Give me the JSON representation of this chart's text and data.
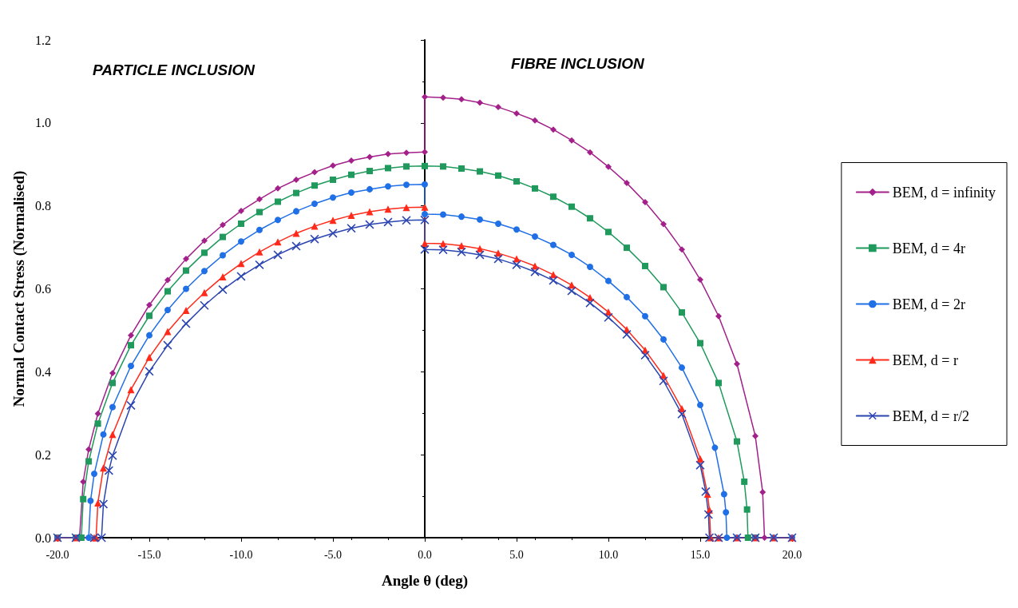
{
  "chart_data": {
    "type": "line",
    "xlabel": "Angle θ (deg)",
    "ylabel": "Normal Contact Stress (Normalised)",
    "annotations": [
      "PARTICLE INCLUSION",
      "FIBRE INCLUSION"
    ],
    "xlim": [
      -20,
      20
    ],
    "xticks": [
      {
        "value": -20,
        "label": "-20.0"
      },
      {
        "value": -15,
        "label": "-15.0"
      },
      {
        "value": -10,
        "label": "-10.0"
      },
      {
        "value": -5,
        "label": "-5.0"
      },
      {
        "value": 0,
        "label": "0.0"
      },
      {
        "value": 5,
        "label": "5.0"
      },
      {
        "value": 10,
        "label": "10.0"
      },
      {
        "value": 15,
        "label": "15.0"
      },
      {
        "value": 20,
        "label": "20.0"
      }
    ],
    "ylim": [
      0,
      1.2
    ],
    "yticks": [
      {
        "value": 0,
        "label": "0.0"
      },
      {
        "value": 0.2,
        "label": "0.2"
      },
      {
        "value": 0.4,
        "label": "0.4"
      },
      {
        "value": 0.6,
        "label": "0.6"
      },
      {
        "value": 0.8,
        "label": "0.8"
      },
      {
        "value": 1,
        "label": "1.0"
      },
      {
        "value": 1.2,
        "label": "1.2"
      }
    ],
    "legend": "right",
    "line_style": "solid",
    "series": [
      {
        "name": "BEM, d = infinity",
        "color": "#a3208a",
        "marker": "diamond",
        "x": [
          -20,
          -19,
          -18.8,
          -18.6,
          -18.3,
          -17.8,
          -17,
          -16,
          -15,
          -14,
          -13,
          -12,
          -11,
          -10,
          -9,
          -8,
          -7,
          -6,
          -5,
          -4,
          -3,
          -2,
          -1,
          0,
          0,
          1,
          2,
          3,
          4,
          5,
          6,
          7,
          8,
          9,
          10,
          11,
          12,
          13,
          14,
          15,
          16,
          17,
          18,
          18.4,
          18.5,
          19,
          20
        ],
        "values": [
          0,
          0,
          0,
          0.135,
          0.213,
          0.299,
          0.397,
          0.488,
          0.561,
          0.621,
          0.672,
          0.716,
          0.754,
          0.788,
          0.816,
          0.842,
          0.863,
          0.881,
          0.897,
          0.909,
          0.918,
          0.925,
          0.928,
          0.93,
          1.063,
          1.061,
          1.057,
          1.049,
          1.038,
          1.023,
          1.006,
          0.984,
          0.958,
          0.929,
          0.894,
          0.855,
          0.809,
          0.756,
          0.695,
          0.622,
          0.534,
          0.419,
          0.245,
          0.11,
          0,
          0,
          0
        ]
      },
      {
        "name": "BEM, d = 4r",
        "color": "#1f9a5c",
        "marker": "square",
        "x": [
          -20,
          -19,
          -18.7,
          -18.6,
          -18.3,
          -17.8,
          -17,
          -16,
          -15,
          -14,
          -13,
          -12,
          -11,
          -10,
          -9,
          -8,
          -7,
          -6,
          -5,
          -4,
          -3,
          -2,
          -1,
          0,
          1,
          2,
          3,
          4,
          5,
          6,
          7,
          8,
          9,
          10,
          11,
          12,
          13,
          14,
          15,
          16,
          17,
          17.4,
          17.55,
          17.6,
          18
        ],
        "values": [
          0,
          0,
          0,
          0.093,
          0.184,
          0.275,
          0.373,
          0.464,
          0.535,
          0.594,
          0.644,
          0.687,
          0.725,
          0.757,
          0.785,
          0.81,
          0.831,
          0.849,
          0.863,
          0.875,
          0.884,
          0.891,
          0.895,
          0.896,
          0.895,
          0.89,
          0.883,
          0.873,
          0.859,
          0.842,
          0.822,
          0.798,
          0.77,
          0.737,
          0.699,
          0.655,
          0.604,
          0.543,
          0.469,
          0.373,
          0.232,
          0.135,
          0.068,
          0,
          0
        ]
      },
      {
        "name": "BEM, d = 2r",
        "color": "#1f6fe6",
        "marker": "circle",
        "x": [
          -20,
          -19,
          -18.3,
          -18.2,
          -18,
          -17.5,
          -17,
          -16,
          -15,
          -14,
          -13,
          -12,
          -11,
          -10,
          -9,
          -8,
          -7,
          -6,
          -5,
          -4,
          -3,
          -2,
          -1,
          0,
          0,
          1,
          2,
          3,
          4,
          5,
          6,
          7,
          8,
          9,
          10,
          11,
          12,
          13,
          14,
          15,
          15.8,
          16.3,
          16.4,
          16.45,
          17,
          18,
          19,
          20
        ],
        "values": [
          0,
          0,
          0,
          0.089,
          0.154,
          0.249,
          0.315,
          0.414,
          0.488,
          0.549,
          0.6,
          0.643,
          0.681,
          0.714,
          0.742,
          0.766,
          0.787,
          0.805,
          0.82,
          0.832,
          0.84,
          0.847,
          0.851,
          0.852,
          0.78,
          0.779,
          0.774,
          0.767,
          0.757,
          0.743,
          0.726,
          0.706,
          0.682,
          0.653,
          0.619,
          0.58,
          0.534,
          0.478,
          0.41,
          0.32,
          0.217,
          0.105,
          0.061,
          0,
          0,
          0,
          0,
          0
        ]
      },
      {
        "name": "BEM, d = r",
        "color": "#ff2a1a",
        "marker": "triangle",
        "x": [
          -20,
          -19,
          -18,
          -17.9,
          -17.8,
          -17.5,
          -17,
          -16,
          -15,
          -14,
          -13,
          -12,
          -11,
          -10,
          -9,
          -8,
          -7,
          -6,
          -5,
          -4,
          -3,
          -2,
          -1,
          0,
          0,
          1,
          2,
          3,
          4,
          5,
          6,
          7,
          8,
          9,
          10,
          11,
          12,
          13,
          14,
          15,
          15.4,
          15.5,
          15.57,
          16,
          17,
          18,
          19,
          20
        ],
        "values": [
          0,
          0,
          0,
          0,
          0.084,
          0.168,
          0.249,
          0.357,
          0.435,
          0.497,
          0.548,
          0.591,
          0.629,
          0.661,
          0.689,
          0.713,
          0.734,
          0.751,
          0.765,
          0.777,
          0.786,
          0.792,
          0.796,
          0.797,
          0.71,
          0.709,
          0.704,
          0.697,
          0.686,
          0.672,
          0.655,
          0.634,
          0.609,
          0.579,
          0.544,
          0.502,
          0.452,
          0.391,
          0.311,
          0.19,
          0.105,
          0.067,
          0,
          0,
          0,
          0,
          0,
          0
        ]
      },
      {
        "name": "BEM, d = r/2",
        "color": "#2a44b0",
        "marker": "cross",
        "x": [
          -20,
          -19,
          -18,
          -17.6,
          -17.5,
          -17.2,
          -17,
          -16,
          -15,
          -14,
          -13,
          -12,
          -11,
          -10,
          -9,
          -8,
          -7,
          -6,
          -5,
          -4,
          -3,
          -2,
          -1,
          0,
          0,
          1,
          2,
          3,
          4,
          5,
          6,
          7,
          8,
          9,
          10,
          11,
          12,
          13,
          14,
          15,
          15.3,
          15.45,
          15.5,
          16,
          17,
          18,
          19,
          20
        ],
        "values": [
          0,
          0,
          0,
          0,
          0.081,
          0.162,
          0.198,
          0.319,
          0.401,
          0.464,
          0.516,
          0.56,
          0.598,
          0.63,
          0.658,
          0.682,
          0.703,
          0.72,
          0.734,
          0.746,
          0.755,
          0.761,
          0.765,
          0.766,
          0.695,
          0.694,
          0.689,
          0.682,
          0.672,
          0.658,
          0.641,
          0.62,
          0.595,
          0.566,
          0.531,
          0.49,
          0.44,
          0.378,
          0.298,
          0.175,
          0.111,
          0.056,
          0,
          0,
          0,
          0,
          0,
          0
        ]
      }
    ]
  }
}
